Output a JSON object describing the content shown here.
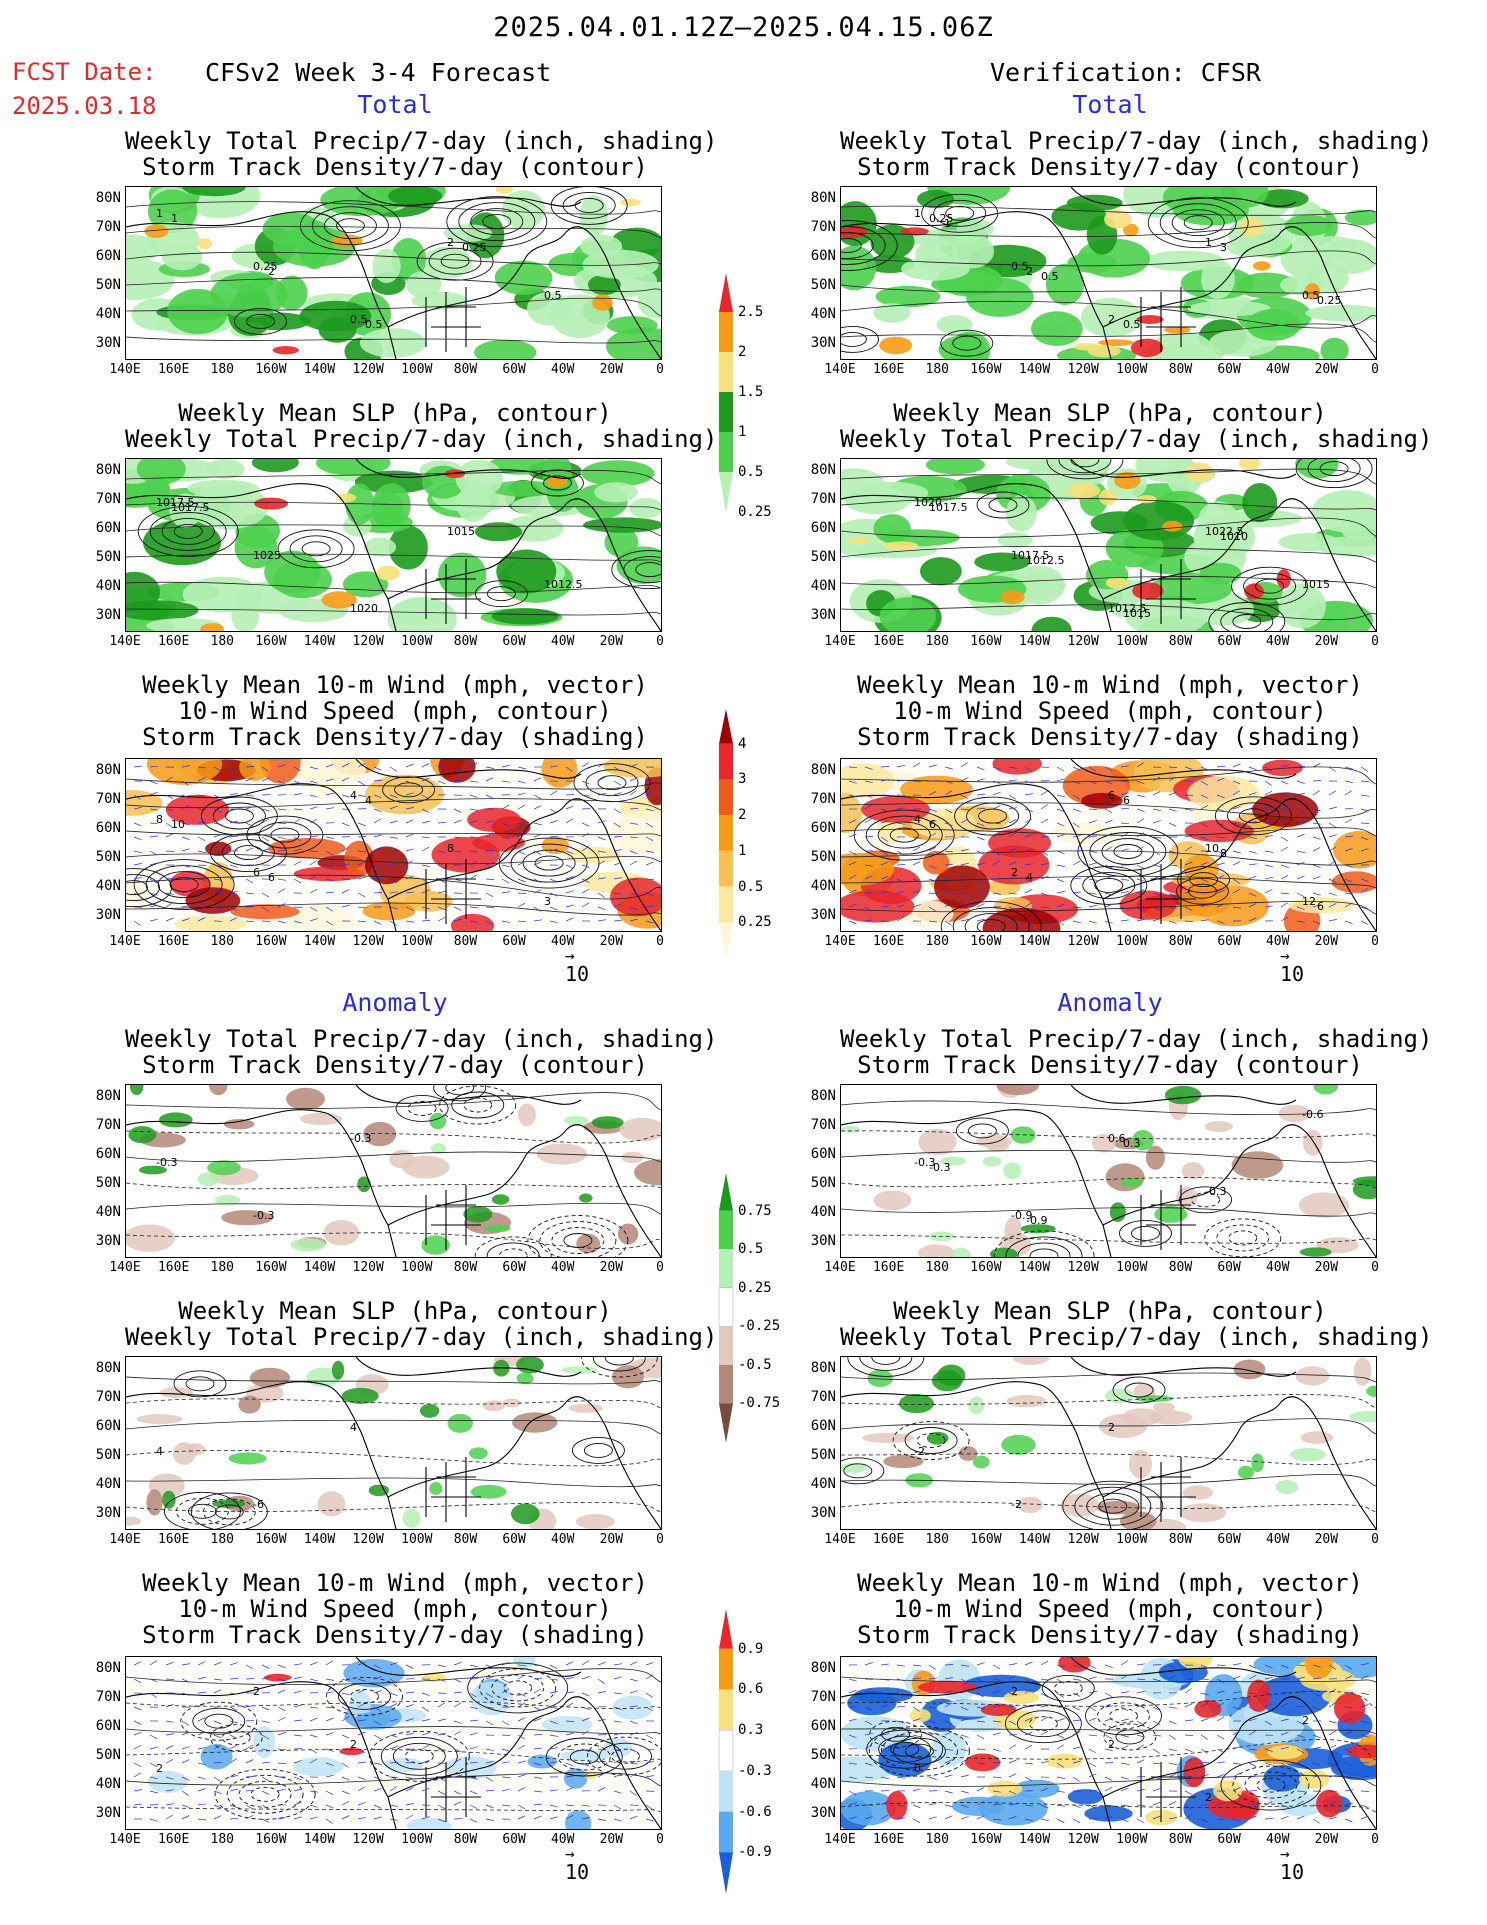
{
  "header": {
    "main_title": "2025.04.01.12Z–2025.04.15.06Z",
    "fcst_label": "FCST Date:",
    "fcst_date": "2025.03.18",
    "model_title": "CFSv2 Week 3-4 Forecast",
    "verif_title": "Verification: CFSR"
  },
  "sections": {
    "total": "Total",
    "anomaly": "Anomaly"
  },
  "panel_titles": {
    "precip_storm": [
      "Weekly Total Precip/7-day (inch, shading)",
      "Storm Track Density/7-day (contour)"
    ],
    "slp_precip": [
      "Weekly Mean SLP (hPa, contour)",
      "Weekly Total Precip/7-day (inch, shading)"
    ],
    "wind_storm": [
      "Weekly Mean 10-m Wind (mph, vector)",
      "10-m Wind Speed (mph, contour)",
      "Storm Track Density/7-day (shading)"
    ]
  },
  "axes": {
    "lat_labels": [
      "80N",
      "70N",
      "60N",
      "50N",
      "40N",
      "30N"
    ],
    "lon_labels": [
      "140E",
      "160E",
      "180",
      "160W",
      "140W",
      "120W",
      "100W",
      "80W",
      "60W",
      "40W",
      "20W",
      "0"
    ]
  },
  "vector_ref": "10",
  "colorbars": {
    "precip_total": {
      "labels": [
        "2.5",
        "2",
        "1.5",
        "1",
        "0.5",
        "0.25"
      ],
      "colors": [
        "#e8262b",
        "#f89a16",
        "#f8e07a",
        "#1d9a1d",
        "#4cd04c",
        "#b5f0b5"
      ]
    },
    "storm_total": {
      "labels": [
        "4",
        "3",
        "2",
        "1",
        "0.5",
        "0.25"
      ],
      "colors": [
        "#a00000",
        "#e8262b",
        "#f05a1a",
        "#f89a16",
        "#f8c050",
        "#fbe9a0",
        "#fdf7d8"
      ]
    },
    "precip_anom": {
      "labels": [
        "0.75",
        "0.5",
        "0.25",
        "-0.25",
        "-0.5",
        "-0.75"
      ],
      "colors": [
        "#1d9a1d",
        "#4cd04c",
        "#b5f0b5",
        "#ffffff",
        "#e2c8bd",
        "#b48878",
        "#7a4a3a"
      ]
    },
    "storm_anom": {
      "labels": [
        "0.9",
        "0.6",
        "0.3",
        "-0.3",
        "-0.6",
        "-0.9"
      ],
      "colors": [
        "#e8262b",
        "#f89a16",
        "#f8e07a",
        "#ffffff",
        "#bfe3f5",
        "#5aa8ee",
        "#1a5fd8"
      ]
    }
  },
  "contour_labels": {
    "fc_precip": [
      "1",
      "0.25",
      "0.5",
      "2",
      "0.5",
      "1",
      "2",
      "0.5",
      "0.25"
    ],
    "fc_slp": [
      "1017.5",
      "1025",
      "1020",
      "1015",
      "1012.5",
      "1017.5"
    ],
    "fc_wind": [
      "8",
      "6",
      "4",
      "8",
      "3",
      "10",
      "6",
      "4"
    ],
    "vf_precip": [
      "1",
      "0.5",
      "2",
      "1",
      "0.5",
      "0.25",
      "2",
      "0.5",
      "3",
      "0.25",
      "1",
      "0.5"
    ],
    "vf_slp": [
      "1020",
      "1017.5",
      "1012.5",
      "1022.5",
      "1015",
      "1017.5",
      "1012.5",
      "1015",
      "1010"
    ],
    "vf_wind": [
      "4",
      "2",
      "6",
      "10",
      "12",
      "6",
      "4",
      "6",
      "8",
      "6"
    ],
    "fc_anom_precip": [
      "-0.3",
      "-0.3",
      "-0.3"
    ],
    "fc_anom_slp": [
      "4",
      "-6",
      "4"
    ],
    "fc_anom_wind": [
      "2",
      "2",
      "2"
    ],
    "vf_anom_precip": [
      "-0.3",
      "-0.9",
      "0.6",
      "-0.3",
      "-0.6",
      "-0.3",
      "-0.9",
      "0.3"
    ],
    "vf_anom_slp": [
      "-2",
      "-2",
      "2"
    ],
    "vf_anom_wind": [
      "0",
      "2",
      "2",
      "2",
      "2"
    ]
  }
}
